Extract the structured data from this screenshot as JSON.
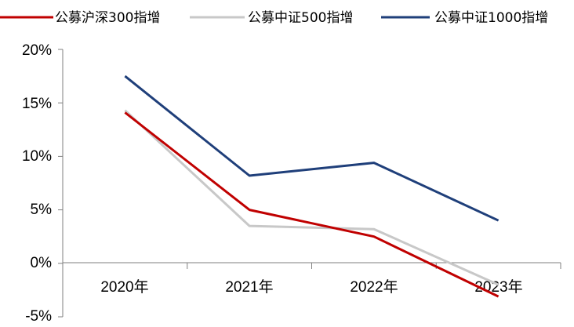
{
  "chart_data": {
    "type": "line",
    "categories": [
      "2020年",
      "2021年",
      "2022年",
      "2023年"
    ],
    "series": [
      {
        "name": "公募沪深300指增",
        "color": "#c00000",
        "values": [
          14.1,
          5.0,
          2.5,
          -3.1
        ]
      },
      {
        "name": "公募中证500指增",
        "color": "#c8c8c8",
        "values": [
          14.3,
          3.5,
          3.2,
          -2.0
        ]
      },
      {
        "name": "公募中证1000指增",
        "color": "#1f3f7a",
        "values": [
          17.5,
          8.2,
          9.4,
          4.0
        ]
      }
    ],
    "yticks": [
      "20%",
      "15%",
      "10%",
      "5%",
      "0%",
      "-5%"
    ],
    "ylim": [
      -5,
      20
    ],
    "grid": false,
    "legend_position": "top"
  }
}
